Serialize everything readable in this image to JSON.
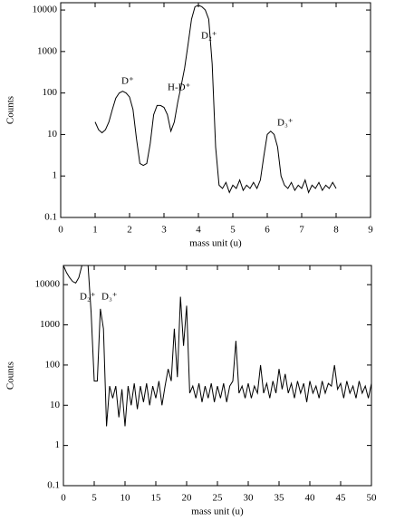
{
  "chart_data": [
    {
      "type": "line",
      "xlabel": "mass unit (u)",
      "ylabel": "Counts",
      "log_y": true,
      "annotations": [
        "D⁺",
        "H-D⁺",
        "D₂⁺",
        "D₃⁺"
      ],
      "xlim": [
        0,
        9
      ],
      "xticks": [
        0,
        1,
        2,
        3,
        4,
        5,
        6,
        7,
        8,
        9
      ],
      "ylim": [
        0.1,
        15000
      ],
      "yticks": [
        0.1,
        1,
        10,
        100,
        1000,
        10000
      ],
      "x": [
        1.0,
        1.1,
        1.2,
        1.3,
        1.4,
        1.5,
        1.6,
        1.7,
        1.8,
        1.9,
        2.0,
        2.1,
        2.2,
        2.3,
        2.4,
        2.5,
        2.6,
        2.7,
        2.8,
        2.9,
        3.0,
        3.1,
        3.2,
        3.3,
        3.4,
        3.5,
        3.6,
        3.7,
        3.8,
        3.9,
        4.0,
        4.1,
        4.2,
        4.3,
        4.4,
        4.5,
        4.6,
        4.7,
        4.8,
        4.9,
        5.0,
        5.1,
        5.2,
        5.3,
        5.4,
        5.5,
        5.6,
        5.7,
        5.8,
        5.9,
        6.0,
        6.1,
        6.2,
        6.3,
        6.4,
        6.5,
        6.6,
        6.7,
        6.8,
        6.9,
        7.0,
        7.1,
        7.2,
        7.3,
        7.4,
        7.5,
        7.6,
        7.7,
        7.8,
        7.9,
        8.0
      ],
      "series": [
        {
          "color": "#000000",
          "values": [
            20,
            13,
            11,
            13,
            20,
            40,
            75,
            100,
            110,
            100,
            80,
            40,
            8,
            2,
            1.8,
            2,
            6,
            30,
            50,
            50,
            45,
            30,
            12,
            20,
            60,
            150,
            400,
            1500,
            6000,
            12000,
            13000,
            12000,
            10000,
            6000,
            500,
            5,
            0.6,
            0.5,
            0.7,
            0.4,
            0.6,
            0.5,
            0.8,
            0.45,
            0.6,
            0.5,
            0.7,
            0.5,
            0.8,
            3,
            10,
            12,
            10,
            5,
            1,
            0.6,
            0.5,
            0.7,
            0.45,
            0.6,
            0.5,
            0.8,
            0.4,
            0.6,
            0.5,
            0.7,
            0.45,
            0.6,
            0.5,
            0.7,
            0.5
          ]
        }
      ]
    },
    {
      "type": "line",
      "xlabel": "mass unit (u)",
      "ylabel": "Counts",
      "log_y": true,
      "annotations": [
        "D₂⁺",
        "D₃⁺"
      ],
      "xlim": [
        0,
        50
      ],
      "xticks": [
        0,
        5,
        10,
        15,
        20,
        25,
        30,
        35,
        40,
        45,
        50
      ],
      "ylim": [
        0.1,
        30000
      ],
      "yticks": [
        0.1,
        1,
        10,
        100,
        1000,
        10000
      ],
      "x": [
        0,
        0.5,
        1,
        1.5,
        2,
        2.5,
        3,
        3.5,
        4,
        4.5,
        5,
        5.5,
        6,
        6.5,
        7,
        7.5,
        8,
        8.5,
        9,
        9.5,
        10,
        10.5,
        11,
        11.5,
        12,
        12.5,
        13,
        13.5,
        14,
        14.5,
        15,
        15.5,
        16,
        16.5,
        17,
        17.5,
        18,
        18.5,
        19,
        19.5,
        20,
        20.5,
        21,
        21.5,
        22,
        22.5,
        23,
        23.5,
        24,
        24.5,
        25,
        25.5,
        26,
        26.5,
        27,
        27.5,
        28,
        28.5,
        29,
        29.5,
        30,
        30.5,
        31,
        31.5,
        32,
        32.5,
        33,
        33.5,
        34,
        34.5,
        35,
        35.5,
        36,
        36.5,
        37,
        37.5,
        38,
        38.5,
        39,
        39.5,
        40,
        40.5,
        41,
        41.5,
        42,
        42.5,
        43,
        43.5,
        44,
        44.5,
        45,
        45.5,
        46,
        46.5,
        47,
        47.5,
        48,
        48.5,
        49,
        49.5,
        50
      ],
      "series": [
        {
          "color": "#000000",
          "values": [
            30000,
            20000,
            15000,
            12000,
            11000,
            15000,
            30000,
            30000,
            30000,
            2000,
            40,
            40,
            2500,
            800,
            3,
            30,
            15,
            30,
            5,
            25,
            3,
            30,
            10,
            35,
            8,
            30,
            12,
            35,
            10,
            30,
            15,
            40,
            10,
            30,
            80,
            40,
            800,
            50,
            5000,
            300,
            3000,
            20,
            30,
            15,
            35,
            12,
            30,
            15,
            35,
            12,
            30,
            15,
            35,
            12,
            30,
            40,
            400,
            20,
            30,
            15,
            35,
            15,
            30,
            20,
            100,
            20,
            35,
            15,
            40,
            20,
            80,
            25,
            60,
            20,
            35,
            15,
            40,
            20,
            35,
            12,
            40,
            20,
            30,
            15,
            40,
            20,
            35,
            30,
            100,
            25,
            35,
            15,
            40,
            20,
            30,
            15,
            40,
            20,
            30,
            15,
            35
          ]
        }
      ]
    }
  ]
}
